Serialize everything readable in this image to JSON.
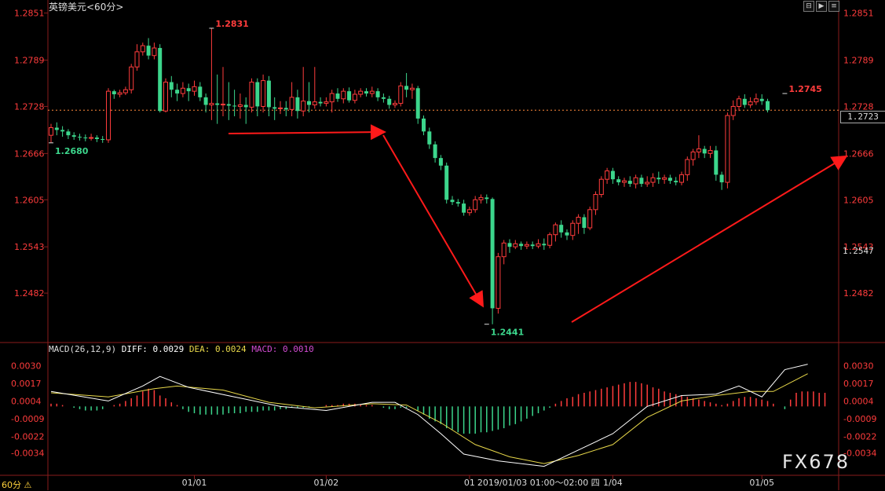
{
  "header": {
    "title": "英镑美元<60分>",
    "macd_prefix": "MACD(26,12,9)",
    "diff_text": "DIFF: 0.0029",
    "dea_text": "DEA: 0.0024",
    "macd_text": "MACD: 0.0010"
  },
  "toolbar": {
    "btn1": "⊟",
    "btn2": "▶",
    "btn3": "≡"
  },
  "timeframe": "60分 ⚠",
  "current_price_label": "1.2723",
  "extra_price_label": "1.2547",
  "watermark": "FX678",
  "cursor_time": "2019/01/03  01:00～02:00  四",
  "colors": {
    "up": "#ff3c3c",
    "down": "#3cd68c",
    "diff": "#ffffff",
    "dea": "#e8d84a",
    "macd": "#d24cd2",
    "axis": "#ff3c3c",
    "arrow": "#ff1a1a"
  },
  "chart_data": [
    {
      "type": "candlestick",
      "title": "英镑美元<60分>",
      "ylim": [
        1.242,
        1.2862
      ],
      "price_ticks": [
        "1.2851",
        "1.2789",
        "1.2728",
        "1.2666",
        "1.2605",
        "1.2543",
        "1.2482"
      ],
      "x_labels": [
        {
          "label": "01/01",
          "bar": 25
        },
        {
          "label": "01/02",
          "bar": 48
        },
        {
          "label": "01",
          "bar": 73
        },
        {
          "label": "1/04",
          "bar": 98
        },
        {
          "label": "01/05",
          "bar": 124
        }
      ],
      "current_price": 1.2723,
      "annotations": [
        {
          "text": "1.2831",
          "bar": 28,
          "price": 1.2831,
          "kind": "high"
        },
        {
          "text": "1.2680",
          "bar": 0,
          "price": 1.268,
          "kind": "low"
        },
        {
          "text": "1.2441",
          "bar": 76,
          "price": 1.2441,
          "kind": "low"
        },
        {
          "text": "1.2745",
          "bar": 128,
          "price": 1.2745,
          "kind": "high"
        }
      ],
      "candles": [
        [
          1.269,
          1.27,
          1.268,
          1.2705
        ],
        [
          1.27,
          1.2697,
          1.269,
          1.2707
        ],
        [
          1.2697,
          1.2695,
          1.2688,
          1.2702
        ],
        [
          1.2695,
          1.269,
          1.2685,
          1.2698
        ],
        [
          1.269,
          1.2688,
          1.2684,
          1.2694
        ],
        [
          1.2688,
          1.2687,
          1.2683,
          1.2692
        ],
        [
          1.2687,
          1.2686,
          1.2682,
          1.2691
        ],
        [
          1.2686,
          1.2687,
          1.2683,
          1.2692
        ],
        [
          1.2687,
          1.2685,
          1.2681,
          1.269
        ],
        [
          1.2685,
          1.2684,
          1.268,
          1.2689
        ],
        [
          1.2684,
          1.2748,
          1.268,
          1.2752
        ],
        [
          1.2748,
          1.2744,
          1.2738,
          1.275
        ],
        [
          1.2744,
          1.2746,
          1.274,
          1.275
        ],
        [
          1.2746,
          1.275,
          1.2743,
          1.2754
        ],
        [
          1.275,
          1.278,
          1.2745,
          1.2784
        ],
        [
          1.278,
          1.28,
          1.2775,
          1.281
        ],
        [
          1.28,
          1.2808,
          1.2795,
          1.2812
        ],
        [
          1.2808,
          1.2795,
          1.279,
          1.2818
        ],
        [
          1.2795,
          1.2805,
          1.279,
          1.2812
        ],
        [
          1.2805,
          1.2722,
          1.272,
          1.281
        ],
        [
          1.2722,
          1.276,
          1.272,
          1.2765
        ],
        [
          1.276,
          1.275,
          1.274,
          1.2768
        ],
        [
          1.275,
          1.2745,
          1.2735,
          1.2758
        ],
        [
          1.2745,
          1.2752,
          1.274,
          1.276
        ],
        [
          1.2752,
          1.2748,
          1.2735,
          1.2758
        ],
        [
          1.2748,
          1.2754,
          1.2742,
          1.2762
        ],
        [
          1.2754,
          1.274,
          1.2735,
          1.276
        ],
        [
          1.274,
          1.273,
          1.272,
          1.2745
        ],
        [
          1.273,
          1.2732,
          1.271,
          1.2831
        ],
        [
          1.2732,
          1.273,
          1.2705,
          1.277
        ],
        [
          1.273,
          1.2731,
          1.2715,
          1.278
        ],
        [
          1.2731,
          1.2729,
          1.271,
          1.276
        ],
        [
          1.2729,
          1.2728,
          1.2715,
          1.275
        ],
        [
          1.2728,
          1.273,
          1.2712,
          1.2745
        ],
        [
          1.273,
          1.2727,
          1.2705,
          1.274
        ],
        [
          1.2727,
          1.276,
          1.272,
          1.2765
        ],
        [
          1.276,
          1.2728,
          1.2715,
          1.2765
        ],
        [
          1.2728,
          1.2762,
          1.272,
          1.277
        ],
        [
          1.2762,
          1.2727,
          1.2715,
          1.2768
        ],
        [
          1.2727,
          1.2725,
          1.271,
          1.274
        ],
        [
          1.2725,
          1.2726,
          1.2718,
          1.2735
        ],
        [
          1.2726,
          1.2724,
          1.2715,
          1.2735
        ],
        [
          1.2724,
          1.274,
          1.2715,
          1.276
        ],
        [
          1.274,
          1.2722,
          1.2712,
          1.275
        ],
        [
          1.2722,
          1.2735,
          1.2715,
          1.278
        ],
        [
          1.2735,
          1.273,
          1.272,
          1.276
        ],
        [
          1.273,
          1.2734,
          1.2725,
          1.278
        ],
        [
          1.2734,
          1.2732,
          1.2728,
          1.274
        ],
        [
          1.2732,
          1.2734,
          1.2728,
          1.274
        ],
        [
          1.2734,
          1.2745,
          1.272,
          1.275
        ],
        [
          1.2745,
          1.2738,
          1.2734,
          1.2752
        ],
        [
          1.2738,
          1.2748,
          1.2732,
          1.2752
        ],
        [
          1.2748,
          1.2736,
          1.2733,
          1.2753
        ],
        [
          1.2736,
          1.2744,
          1.2732,
          1.275
        ],
        [
          1.2744,
          1.2748,
          1.274,
          1.2752
        ],
        [
          1.2748,
          1.2745,
          1.2741,
          1.2752
        ],
        [
          1.2745,
          1.2748,
          1.274,
          1.2754
        ],
        [
          1.2748,
          1.274,
          1.2735,
          1.2752
        ],
        [
          1.274,
          1.2738,
          1.2733,
          1.2745
        ],
        [
          1.2738,
          1.273,
          1.2725,
          1.2742
        ],
        [
          1.273,
          1.2732,
          1.2726,
          1.2736
        ],
        [
          1.2732,
          1.2755,
          1.2728,
          1.276
        ],
        [
          1.2755,
          1.275,
          1.274,
          1.2772
        ],
        [
          1.275,
          1.2752,
          1.2738,
          1.2758
        ],
        [
          1.2752,
          1.2712,
          1.2705,
          1.2755
        ],
        [
          1.2712,
          1.2695,
          1.269,
          1.2716
        ],
        [
          1.2695,
          1.2678,
          1.2672,
          1.27
        ],
        [
          1.2678,
          1.266,
          1.2654,
          1.2682
        ],
        [
          1.266,
          1.265,
          1.2644,
          1.2664
        ],
        [
          1.265,
          1.2605,
          1.26,
          1.2654
        ],
        [
          1.2605,
          1.2602,
          1.2598,
          1.261
        ],
        [
          1.2602,
          1.26,
          1.2596,
          1.2606
        ],
        [
          1.26,
          1.2588,
          1.2584,
          1.2605
        ],
        [
          1.2588,
          1.2592,
          1.2584,
          1.2596
        ],
        [
          1.2592,
          1.2605,
          1.2588,
          1.261
        ],
        [
          1.2605,
          1.2608,
          1.26,
          1.2612
        ],
        [
          1.2608,
          1.2606,
          1.26,
          1.2612
        ],
        [
          1.2606,
          1.2462,
          1.2441,
          1.2608
        ],
        [
          1.2462,
          1.253,
          1.2455,
          1.2535
        ],
        [
          1.253,
          1.2548,
          1.252,
          1.2552
        ],
        [
          1.2548,
          1.2543,
          1.2535,
          1.2553
        ],
        [
          1.2543,
          1.2547,
          1.254,
          1.2552
        ],
        [
          1.2547,
          1.2544,
          1.2539,
          1.255
        ],
        [
          1.2544,
          1.2546,
          1.254,
          1.255
        ],
        [
          1.2546,
          1.2544,
          1.254,
          1.255
        ],
        [
          1.2544,
          1.2547,
          1.2541,
          1.2553
        ],
        [
          1.2547,
          1.2545,
          1.2539,
          1.2554
        ],
        [
          1.2545,
          1.2559,
          1.2541,
          1.2562
        ],
        [
          1.2559,
          1.2572,
          1.255,
          1.2575
        ],
        [
          1.2572,
          1.2562,
          1.2555,
          1.2578
        ],
        [
          1.2562,
          1.2558,
          1.2552,
          1.2566
        ],
        [
          1.2558,
          1.2574,
          1.2552,
          1.2578
        ],
        [
          1.2574,
          1.2582,
          1.256,
          1.2586
        ],
        [
          1.2582,
          1.2568,
          1.256,
          1.2586
        ],
        [
          1.2568,
          1.2592,
          1.2565,
          1.2596
        ],
        [
          1.2592,
          1.2612,
          1.2585,
          1.2616
        ],
        [
          1.2612,
          1.2632,
          1.2608,
          1.2636
        ],
        [
          1.2632,
          1.2643,
          1.2626,
          1.2647
        ],
        [
          1.2643,
          1.2632,
          1.2626,
          1.2647
        ],
        [
          1.2632,
          1.2628,
          1.2624,
          1.2636
        ],
        [
          1.2628,
          1.263,
          1.2622,
          1.2634
        ],
        [
          1.263,
          1.2626,
          1.2622,
          1.2636
        ],
        [
          1.2626,
          1.2634,
          1.262,
          1.2638
        ],
        [
          1.2634,
          1.2626,
          1.2622,
          1.2638
        ],
        [
          1.2626,
          1.2628,
          1.2622,
          1.2636
        ],
        [
          1.2628,
          1.2634,
          1.2622,
          1.264
        ],
        [
          1.2634,
          1.2632,
          1.2626,
          1.2642
        ],
        [
          1.2632,
          1.2634,
          1.2626,
          1.2638
        ],
        [
          1.2634,
          1.263,
          1.2626,
          1.2638
        ],
        [
          1.263,
          1.2628,
          1.2624,
          1.2635
        ],
        [
          1.2628,
          1.2638,
          1.2624,
          1.2642
        ],
        [
          1.2638,
          1.2658,
          1.263,
          1.2662
        ],
        [
          1.2658,
          1.2668,
          1.265,
          1.2672
        ],
        [
          1.2668,
          1.2672,
          1.266,
          1.269
        ],
        [
          1.2672,
          1.2666,
          1.266,
          1.2676
        ],
        [
          1.2666,
          1.267,
          1.266,
          1.2676
        ],
        [
          1.267,
          1.2638,
          1.263,
          1.2676
        ],
        [
          1.2638,
          1.2628,
          1.2618,
          1.2642
        ],
        [
          1.2628,
          1.2716,
          1.262,
          1.272
        ],
        [
          1.2716,
          1.2728,
          1.271,
          1.2736
        ],
        [
          1.2728,
          1.2738,
          1.2722,
          1.2742
        ],
        [
          1.2738,
          1.273,
          1.2726,
          1.2744
        ],
        [
          1.273,
          1.2734,
          1.2726,
          1.274
        ],
        [
          1.2734,
          1.2738,
          1.273,
          1.2745
        ],
        [
          1.2738,
          1.2735,
          1.273,
          1.2744
        ],
        [
          1.2735,
          1.2723,
          1.272,
          1.2738
        ]
      ]
    },
    {
      "type": "macd",
      "params": "MACD(26,12,9)",
      "diff": 0.0029,
      "dea": 0.0024,
      "macd": 0.001,
      "ylim": [
        -0.005,
        0.004
      ],
      "y_ticks": [
        "0.0030",
        "0.0017",
        "0.0004",
        "-0.0009",
        "-0.0022",
        "-0.0034"
      ],
      "diff_points": [
        [
          0,
          0.0011
        ],
        [
          10,
          0.0004
        ],
        [
          16,
          0.0015
        ],
        [
          19,
          0.0022
        ],
        [
          24,
          0.0014
        ],
        [
          32,
          0.0007
        ],
        [
          40,
          0.0
        ],
        [
          48,
          -0.0003
        ],
        [
          56,
          0.0003
        ],
        [
          60,
          0.0003
        ],
        [
          64,
          -0.0006
        ],
        [
          68,
          -0.002
        ],
        [
          72,
          -0.0035
        ],
        [
          78,
          -0.004
        ],
        [
          86,
          -0.0044
        ],
        [
          92,
          -0.0032
        ],
        [
          98,
          -0.002
        ],
        [
          104,
          0.0
        ],
        [
          110,
          0.0008
        ],
        [
          116,
          0.0009
        ],
        [
          120,
          0.0015
        ],
        [
          124,
          0.0007
        ],
        [
          128,
          0.0027
        ],
        [
          132,
          0.0031
        ]
      ],
      "dea_points": [
        [
          0,
          0.001
        ],
        [
          10,
          0.0007
        ],
        [
          18,
          0.0013
        ],
        [
          22,
          0.0015
        ],
        [
          30,
          0.0012
        ],
        [
          38,
          0.0003
        ],
        [
          46,
          -0.0001
        ],
        [
          56,
          0.0002
        ],
        [
          62,
          0.0001
        ],
        [
          68,
          -0.0012
        ],
        [
          74,
          -0.0028
        ],
        [
          80,
          -0.0037
        ],
        [
          86,
          -0.0042
        ],
        [
          92,
          -0.0036
        ],
        [
          98,
          -0.0028
        ],
        [
          104,
          -0.0008
        ],
        [
          110,
          0.0004
        ],
        [
          116,
          0.0008
        ],
        [
          122,
          0.0011
        ],
        [
          126,
          0.0011
        ],
        [
          132,
          0.0024
        ]
      ],
      "hist": [
        0.0002,
        0.0002,
        0.0001,
        0.0,
        -0.0001,
        -0.0002,
        -0.0003,
        -0.0003,
        -0.0003,
        -0.0002,
        0.0,
        0.0001,
        0.0002,
        0.0004,
        0.0006,
        0.0008,
        0.0011,
        0.0013,
        0.0012,
        0.0008,
        0.0006,
        0.0003,
        0.0001,
        -0.0002,
        -0.0004,
        -0.0005,
        -0.0006,
        -0.0006,
        -0.0006,
        -0.0006,
        -0.0006,
        -0.0005,
        -0.0005,
        -0.0005,
        -0.0004,
        -0.0004,
        -0.0004,
        -0.0003,
        -0.0003,
        -0.0003,
        -0.0002,
        -0.0002,
        -0.0001,
        -0.0001,
        -0.0001,
        -0.0001,
        0.0,
        0.0,
        0.0001,
        0.0001,
        0.0001,
        0.0002,
        0.0002,
        0.0002,
        0.0001,
        0.0001,
        0.0001,
        0.0,
        -0.0001,
        -0.0002,
        -0.0002,
        -0.0001,
        -0.0001,
        0.0,
        -0.0003,
        -0.0006,
        -0.0009,
        -0.0011,
        -0.0013,
        -0.0016,
        -0.0017,
        -0.0019,
        -0.002,
        -0.002,
        -0.002,
        -0.0019,
        -0.0019,
        -0.0018,
        -0.0017,
        -0.0016,
        -0.0014,
        -0.0013,
        -0.0011,
        -0.0009,
        -0.0007,
        -0.0005,
        -0.0003,
        -0.0001,
        0.0002,
        0.0004,
        0.0006,
        0.0007,
        0.0009,
        0.001,
        0.0011,
        0.0012,
        0.0013,
        0.0014,
        0.0015,
        0.0016,
        0.0017,
        0.0018,
        0.0018,
        0.0017,
        0.0016,
        0.0014,
        0.0013,
        0.0011,
        0.001,
        0.0009,
        0.0008,
        0.0007,
        0.0006,
        0.0005,
        0.0004,
        0.0003,
        0.0002,
        0.0001,
        0.0002,
        0.0004,
        0.0006,
        0.0007,
        0.0007,
        0.0006,
        0.0005,
        0.0004,
        0.0002,
        0.0,
        -0.0002,
        0.0005,
        0.001,
        0.0011,
        0.0011,
        0.0011,
        0.001,
        0.001
      ]
    }
  ]
}
